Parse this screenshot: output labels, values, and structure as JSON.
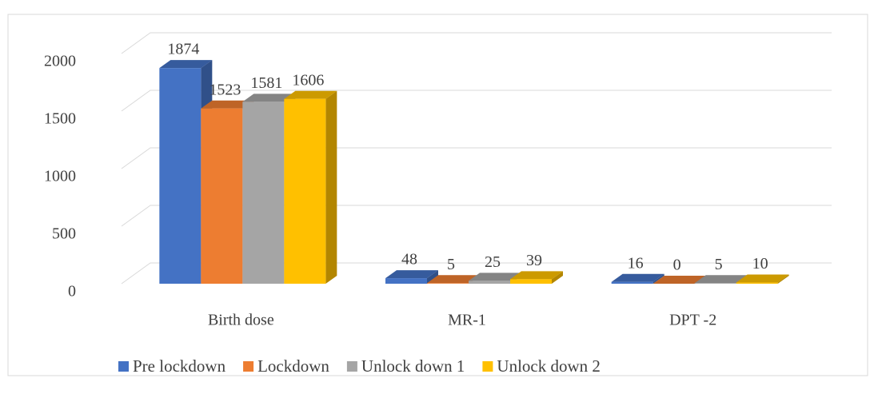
{
  "chart_data": {
    "type": "bar3d",
    "categories": [
      "Birth dose",
      "MR-1",
      "DPT -2"
    ],
    "series": [
      {
        "name": "Pre lockdown",
        "color": "#4472c4",
        "values": [
          1874,
          48,
          16
        ]
      },
      {
        "name": "Lockdown",
        "color": "#ed7d31",
        "values": [
          1523,
          5,
          0
        ]
      },
      {
        "name": "Unlock down 1",
        "color": "#a5a5a5",
        "values": [
          1581,
          25,
          5
        ]
      },
      {
        "name": "Unlock down 2",
        "color": "#ffc000",
        "values": [
          1606,
          39,
          10
        ]
      }
    ],
    "ylim": [
      0,
      2000
    ],
    "yticks": [
      0,
      500,
      1000,
      1500,
      2000
    ],
    "grid": true,
    "legend": "bottom"
  }
}
